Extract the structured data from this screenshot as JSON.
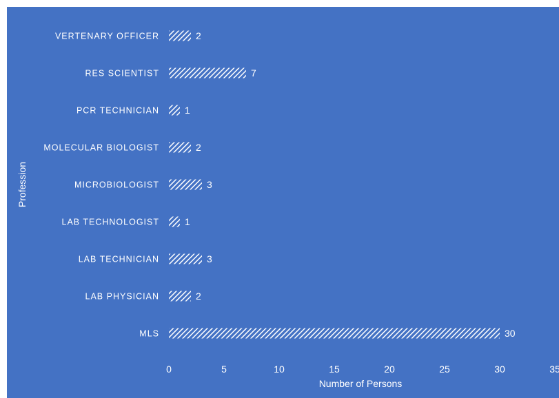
{
  "chart_data": {
    "type": "bar",
    "orientation": "horizontal",
    "categories": [
      "VERTENARY OFFICER",
      "RES SCIENTIST",
      "PCR TECHNICIAN",
      "MOLECULAR BIOLOGIST",
      "MICROBIOLOGIST",
      "LAB TECHNOLOGIST",
      "LAB TECHNICIAN",
      "LAB PHYSICIAN",
      "MLS"
    ],
    "values": [
      2,
      7,
      1,
      2,
      3,
      1,
      3,
      2,
      30
    ],
    "xlabel": "Number of Persons",
    "ylabel": "Profession",
    "xlim": [
      0,
      35
    ],
    "xticks": [
      "0",
      "5",
      "10",
      "15",
      "20",
      "25",
      "30",
      "35"
    ],
    "grid": false,
    "data_labels": true,
    "colors": {
      "background": "#4472c4",
      "bar_pattern": "hatched-white",
      "text": "#ffffff"
    }
  }
}
